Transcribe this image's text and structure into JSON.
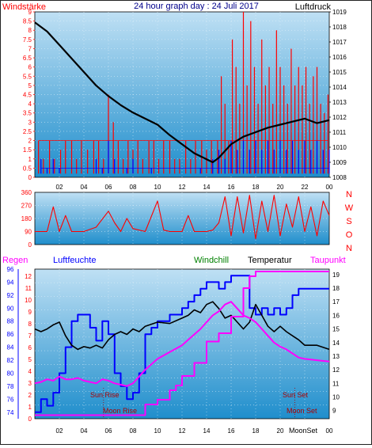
{
  "header": {
    "title": "24 hour graph day : 24 Juli 2017",
    "windstaerke": "Windstärke",
    "luftdruck": "Luftdruck"
  },
  "labels": {
    "regen": "Regen",
    "luftfeuchte": "Luftfeuchte",
    "windchill": "Windchill",
    "temperatur": "Temperatur",
    "taupunkt": "Taupunkt",
    "sun_rise": "Sun Rise",
    "moon_rise": "Moon Rise",
    "sun_set": "Sun Set",
    "moon_set": "Moon Set",
    "moon_set_tick": "MoonSet"
  },
  "colors": {
    "bg_top": "#bfe0f4",
    "bg_bottom": "#1f8ecc",
    "pressure": "#000000",
    "wind_gust": "#ff0000",
    "wind_avg": "#0000ff",
    "direction": "#ff0000",
    "humidity": "#0000ff",
    "temperature": "#000000",
    "dewpoint": "#ff00ff",
    "windchill": "#008000",
    "rain": "#ff00ff",
    "axis_red": "#ff0000",
    "axis_blue": "#0000ff",
    "axis_black": "#000000",
    "astro": "#aa0000"
  },
  "chart_data": [
    {
      "type": "line",
      "title": "24 hour graph day : 24 Juli 2017",
      "x_ticks": [
        "02",
        "04",
        "06",
        "08",
        "10",
        "12",
        "14",
        "16",
        "18",
        "20",
        "22",
        "00"
      ],
      "x_range_hours": [
        0,
        24
      ],
      "left_axis": {
        "label": "Windstärke",
        "ticks": [
          "0",
          "0.5",
          "1",
          "1.5",
          "2",
          "2.5",
          "3",
          "3.5",
          "4",
          "4.5",
          "5",
          "5.5",
          "6",
          "6.5",
          "7",
          "7.5",
          "8",
          "8.5",
          "9"
        ],
        "range": [
          0,
          9
        ]
      },
      "right_axis": {
        "label": "Luftdruck",
        "ticks": [
          "1008",
          "1009",
          "1010",
          "1011",
          "1012",
          "1013",
          "1014",
          "1015",
          "1016",
          "1017",
          "1018",
          "1019"
        ],
        "range": [
          1008,
          1019
        ]
      },
      "series": [
        {
          "name": "Luftdruck",
          "axis": "right",
          "x": [
            0,
            1,
            2,
            3,
            4,
            5,
            6,
            7,
            8,
            9,
            10,
            11,
            12,
            13,
            14,
            14.5,
            15,
            16,
            17,
            18,
            19,
            20,
            21,
            22,
            23,
            24
          ],
          "y": [
            1018.3,
            1017.7,
            1016.8,
            1015.9,
            1015.0,
            1014.1,
            1013.4,
            1012.8,
            1012.3,
            1011.9,
            1011.5,
            1010.8,
            1010.2,
            1009.6,
            1009.2,
            1009.0,
            1009.3,
            1010.2,
            1010.7,
            1011.0,
            1011.3,
            1011.5,
            1011.7,
            1011.9,
            1011.6,
            1011.8
          ]
        },
        {
          "name": "Windböen",
          "axis": "left",
          "style": "spikes",
          "x": [
            0.3,
            0.7,
            1.2,
            1.6,
            2.1,
            2.5,
            3.0,
            3.4,
            3.8,
            4.3,
            4.8,
            5.2,
            5.6,
            6.0,
            6.4,
            6.8,
            7.2,
            7.6,
            8.0,
            8.4,
            8.8,
            9.3,
            9.7,
            10.1,
            10.5,
            11.0,
            11.4,
            11.8,
            12.3,
            12.7,
            13.1,
            13.6,
            14.0,
            14.4,
            14.9,
            15.2,
            15.5,
            15.8,
            16.1,
            16.4,
            16.7,
            17.0,
            17.3,
            17.6,
            17.9,
            18.2,
            18.5,
            18.8,
            19.1,
            19.4,
            19.7,
            20.0,
            20.3,
            20.6,
            20.9,
            21.2,
            21.5,
            21.8,
            22.1,
            22.4,
            22.7,
            23.0,
            23.3,
            23.6,
            23.9
          ],
          "y": [
            2,
            1,
            2,
            1,
            1.5,
            2,
            2,
            1,
            2,
            1.5,
            2,
            2,
            1,
            4.5,
            3,
            2,
            1,
            2,
            1.5,
            2,
            1,
            2,
            2,
            1,
            2,
            2,
            1,
            1,
            2,
            1,
            2,
            2,
            1.5,
            2,
            2,
            5.5,
            4,
            2,
            7.5,
            6,
            4,
            9,
            5,
            8.5,
            6,
            4,
            7.5,
            5,
            6,
            4,
            8,
            6,
            5,
            4,
            7,
            5,
            6,
            5,
            6,
            4,
            5.5,
            6,
            4,
            3.5,
            4.5
          ]
        },
        {
          "name": "Windmittel",
          "axis": "left",
          "style": "spikes",
          "x": [
            0.5,
            1.0,
            1.5,
            2.0,
            5.0,
            5.5,
            6.0,
            6.5,
            7.5,
            8.0,
            9.5,
            13.5,
            14.5,
            15.0,
            15.5,
            16.0,
            16.5,
            17.0,
            17.5,
            18.0,
            18.5,
            19.0,
            19.5,
            20.0,
            20.5,
            21.0,
            21.5,
            22.0,
            22.5,
            23.0,
            23.5,
            24.0
          ],
          "y": [
            1,
            0.5,
            1,
            0.5,
            1,
            0.5,
            2,
            1,
            0.5,
            1,
            0.5,
            0.5,
            1,
            1.5,
            1,
            2,
            1.5,
            2,
            1.5,
            2,
            1.5,
            2,
            1.5,
            2,
            1.5,
            2,
            1.5,
            2,
            1.5,
            2,
            1.5,
            1.5
          ]
        }
      ]
    },
    {
      "type": "line",
      "title": "",
      "x_range_hours": [
        0,
        24
      ],
      "left_axis": {
        "label": "",
        "ticks": [
          "0",
          "90",
          "180",
          "270",
          "360"
        ],
        "range": [
          0,
          360
        ]
      },
      "right_axis": {
        "label": "",
        "ticks": [
          "N",
          "W",
          "S",
          "O",
          "N"
        ]
      },
      "series": [
        {
          "name": "Windrichtung",
          "axis": "left",
          "style": "noisy",
          "x": [
            0,
            1,
            1.5,
            2,
            2.5,
            3,
            4,
            5,
            6,
            6.5,
            7,
            7.5,
            8,
            9,
            10,
            10.5,
            11,
            12,
            12.5,
            13,
            13.5,
            14,
            14.5,
            15,
            15.5,
            16,
            16.5,
            17,
            17.5,
            18,
            18.5,
            19,
            19.5,
            20,
            20.5,
            21,
            21.5,
            22,
            22.5,
            23,
            23.5,
            24
          ],
          "y": [
            90,
            90,
            260,
            90,
            200,
            90,
            90,
            120,
            230,
            150,
            90,
            180,
            110,
            90,
            300,
            100,
            90,
            90,
            200,
            90,
            90,
            90,
            100,
            150,
            330,
            60,
            330,
            80,
            340,
            40,
            300,
            90,
            340,
            60,
            280,
            120,
            330,
            90,
            260,
            60,
            300,
            200
          ]
        }
      ]
    },
    {
      "type": "line",
      "title": "",
      "x_range_hours": [
        0,
        24
      ],
      "left_axis_humidity": {
        "label": "Luftfeuchte",
        "ticks": [
          "74",
          "76",
          "78",
          "80",
          "82",
          "84",
          "86",
          "88",
          "90",
          "92",
          "94",
          "96"
        ],
        "range": [
          73,
          96
        ]
      },
      "left_axis_rain": {
        "label": "Regen",
        "ticks": [
          "0",
          "1",
          "2",
          "3",
          "4",
          "5",
          "6",
          "7",
          "8",
          "9",
          "10",
          "11",
          "12"
        ],
        "range": [
          0,
          12.6
        ]
      },
      "right_axis": {
        "label": "Temperatur",
        "ticks": [
          "9",
          "10",
          "11",
          "12",
          "13",
          "14",
          "15",
          "16",
          "17",
          "18",
          "19"
        ],
        "range": [
          8.4,
          19.4
        ]
      },
      "annotations": [
        "Sun Rise",
        "Moon Rise",
        "Sun Set",
        "Moon Set"
      ],
      "series": [
        {
          "name": "Luftfeuchte",
          "axis": "humidity",
          "x": [
            0,
            0.5,
            1,
            1.5,
            2,
            2.5,
            3,
            3.5,
            4,
            4.5,
            5,
            5.5,
            6,
            6.5,
            7,
            7.5,
            8,
            8.5,
            9,
            9.5,
            10,
            11,
            12,
            12.5,
            13,
            13.5,
            14,
            14.5,
            15,
            15.5,
            16,
            16.5,
            17,
            17.5,
            18,
            18.5,
            19,
            19.5,
            20,
            20.5,
            21,
            21.5,
            22,
            23,
            24
          ],
          "y": [
            74,
            76,
            75,
            77,
            80,
            84,
            88,
            89,
            89,
            87,
            85,
            88,
            86,
            80,
            78,
            76,
            77,
            80,
            86,
            87,
            88,
            89,
            90,
            91,
            92,
            93,
            94,
            94,
            93,
            94,
            95,
            95,
            95,
            90,
            89,
            90,
            89,
            90,
            89,
            90,
            92,
            93,
            93,
            93,
            93
          ]
        },
        {
          "name": "Temperatur",
          "axis": "right",
          "x": [
            0,
            0.5,
            1,
            1.5,
            2,
            2.5,
            3,
            3.5,
            4,
            4.5,
            5,
            5.5,
            6,
            6.5,
            7,
            7.5,
            8,
            8.5,
            9,
            10,
            11,
            12,
            12.5,
            13,
            13.5,
            14,
            14.5,
            15,
            15.5,
            16,
            16.5,
            17,
            17.5,
            18,
            18.5,
            19,
            19.5,
            20,
            20.5,
            21,
            21.5,
            22,
            23,
            24
          ],
          "y": [
            15.0,
            14.8,
            15.0,
            15.3,
            15.5,
            14.5,
            13.8,
            13.5,
            13.7,
            13.6,
            13.8,
            13.6,
            14.2,
            14.6,
            14.8,
            14.6,
            15.0,
            14.8,
            15.2,
            15.5,
            15.4,
            15.8,
            16.0,
            16.4,
            16.2,
            16.8,
            17.0,
            16.5,
            15.8,
            16.0,
            15.5,
            15.0,
            15.5,
            16.8,
            16.0,
            15.2,
            14.8,
            15.2,
            14.8,
            14.5,
            14.2,
            13.8,
            13.8,
            13.5
          ]
        },
        {
          "name": "Taupunkt",
          "axis": "right",
          "x": [
            0,
            0.5,
            1,
            1.5,
            2,
            2.5,
            3,
            3.5,
            4,
            4.5,
            5,
            5.5,
            6,
            6.5,
            7,
            7.5,
            8,
            8.5,
            9,
            10,
            11,
            12,
            12.5,
            13,
            13.5,
            14,
            14.5,
            15,
            15.5,
            16,
            16.5,
            17,
            17.5,
            18,
            18.5,
            19,
            19.5,
            20,
            20.5,
            21,
            21.5,
            22,
            23,
            24
          ],
          "y": [
            11.0,
            11.1,
            11.3,
            11.2,
            11.5,
            11.3,
            11.3,
            11.4,
            11.2,
            11.1,
            11.0,
            11.3,
            11.2,
            11.0,
            10.9,
            10.8,
            11.0,
            11.5,
            12.0,
            12.8,
            13.3,
            13.8,
            14.2,
            14.6,
            15.0,
            15.5,
            16.0,
            16.3,
            16.8,
            17.0,
            16.5,
            16.0,
            15.8,
            15.5,
            15.0,
            14.5,
            14.0,
            13.7,
            13.5,
            13.2,
            12.9,
            12.8,
            12.7,
            12.6
          ]
        },
        {
          "name": "Regen",
          "axis": "rain",
          "style": "step",
          "x": [
            0,
            8.8,
            9.0,
            10.0,
            11.0,
            11.5,
            12.0,
            13.0,
            14.0,
            15.0,
            16.0,
            17.0,
            17.5,
            18.0,
            24
          ],
          "y": [
            0.3,
            0.3,
            1.2,
            1.6,
            2.4,
            2.8,
            3.6,
            4.7,
            6.5,
            7.2,
            8.6,
            11.0,
            12.0,
            12.4,
            12.4
          ]
        }
      ]
    }
  ]
}
